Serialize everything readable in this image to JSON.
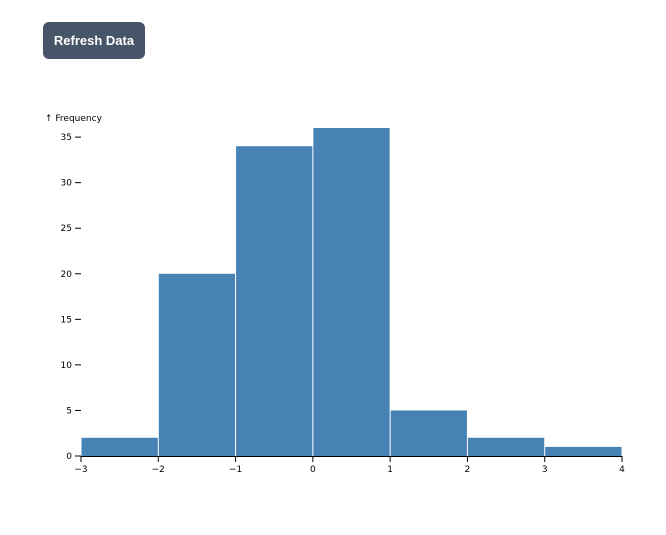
{
  "toolbar": {
    "refresh_label": "Refresh Data"
  },
  "colors": {
    "bar": "#4682b4",
    "button_bg": "#475569",
    "button_text": "#ffffff"
  },
  "chart_data": {
    "type": "bar",
    "title": "",
    "xlabel": "",
    "ylabel": "↑ Frequency",
    "xlim": [
      -3,
      4
    ],
    "ylim": [
      0,
      36
    ],
    "x_ticks": [
      -3,
      -2,
      -1,
      0,
      1,
      2,
      3,
      4
    ],
    "x_tick_labels": [
      "−3",
      "−2",
      "−1",
      "0",
      "1",
      "2",
      "3",
      "4"
    ],
    "y_ticks": [
      0,
      5,
      10,
      15,
      20,
      25,
      30,
      35
    ],
    "y_tick_labels": [
      "0",
      "5",
      "10",
      "15",
      "20",
      "25",
      "30",
      "35"
    ],
    "bins": [
      {
        "x0": -3,
        "x1": -2,
        "count": 2
      },
      {
        "x0": -2,
        "x1": -1,
        "count": 20
      },
      {
        "x0": -1,
        "x1": 0,
        "count": 34
      },
      {
        "x0": 0,
        "x1": 1,
        "count": 36
      },
      {
        "x0": 1,
        "x1": 2,
        "count": 5
      },
      {
        "x0": 2,
        "x1": 3,
        "count": 2
      },
      {
        "x0": 3,
        "x1": 4,
        "count": 1
      }
    ],
    "grid": false,
    "legend": "none"
  }
}
